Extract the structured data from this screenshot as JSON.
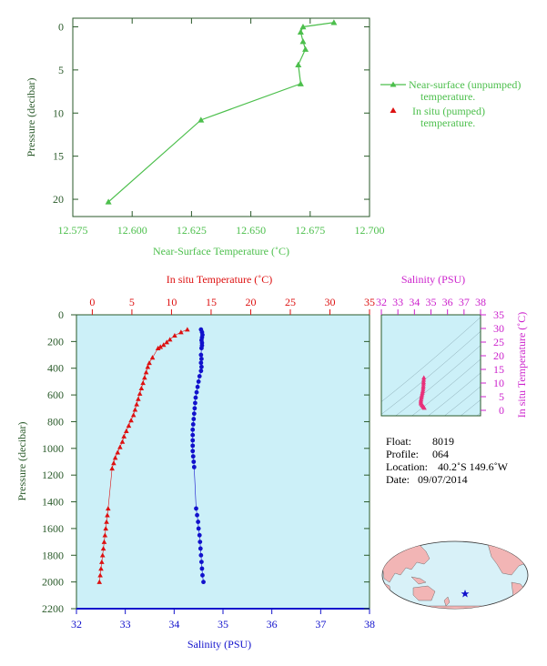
{
  "colors": {
    "near_surface": "#4cbf4c",
    "temperature": "#dd1111",
    "salinity": "#1111cc",
    "salinity_axis": "#cc22cc",
    "ts_points": "#e8307a",
    "axis_dark_green": "#2a5a2a",
    "plot_bg": "#ccf0f8",
    "land": "#f2b5b5",
    "ocean": "#d8f1f8"
  },
  "chart_data": [
    {
      "type": "line",
      "xlabel": "Near-Surface Temperature (˚C)",
      "ylabel": "Pressure (decibar)",
      "xlim": [
        12.575,
        12.7
      ],
      "ylim": [
        22,
        -1
      ],
      "x_ticks": [
        "12.575",
        "12.600",
        "12.625",
        "12.650",
        "12.675",
        "12.700"
      ],
      "y_ticks": [
        "0",
        "5",
        "10",
        "15",
        "20"
      ],
      "legend": [
        {
          "line1": "Near-surface (unpumped)",
          "line2": "temperature."
        },
        {
          "line1": "In situ (pumped)",
          "line2": "temperature."
        }
      ],
      "series": [
        {
          "points": [
            [
              12.685,
              -0.5
            ],
            [
              12.672,
              0.0
            ],
            [
              12.671,
              0.6
            ],
            [
              12.672,
              1.7
            ],
            [
              12.673,
              2.6
            ],
            [
              12.67,
              4.4
            ],
            [
              12.671,
              6.6
            ],
            [
              12.629,
              10.8
            ],
            [
              12.59,
              20.3
            ]
          ]
        }
      ]
    },
    {
      "type": "scatter",
      "top_xlabel": "In situ Temperature (˚C)",
      "bottom_xlabel": "Salinity (PSU)",
      "ylabel": "Pressure (decibar)",
      "temp_xlim": [
        -2,
        35
      ],
      "sal_xlim": [
        32,
        38
      ],
      "ylim": [
        2200,
        0
      ],
      "temp_ticks": [
        "0",
        "5",
        "10",
        "15",
        "20",
        "25",
        "30",
        "35"
      ],
      "sal_ticks": [
        "32",
        "33",
        "34",
        "35",
        "36",
        "37",
        "38"
      ],
      "y_ticks": [
        "0",
        "200",
        "400",
        "600",
        "800",
        "1000",
        "1200",
        "1400",
        "1600",
        "1800",
        "2000",
        "2200"
      ],
      "temperature": [
        [
          12.0,
          110
        ],
        [
          11.2,
          130
        ],
        [
          10.4,
          155
        ],
        [
          9.8,
          185
        ],
        [
          9.4,
          205
        ],
        [
          9.0,
          225
        ],
        [
          8.6,
          240
        ],
        [
          8.3,
          250
        ],
        [
          7.6,
          320
        ],
        [
          7.2,
          360
        ],
        [
          7.0,
          390
        ],
        [
          6.8,
          430
        ],
        [
          6.6,
          470
        ],
        [
          6.4,
          510
        ],
        [
          6.2,
          550
        ],
        [
          6.0,
          590
        ],
        [
          5.8,
          630
        ],
        [
          5.6,
          670
        ],
        [
          5.4,
          710
        ],
        [
          5.2,
          750
        ],
        [
          4.9,
          790
        ],
        [
          4.6,
          830
        ],
        [
          4.3,
          870
        ],
        [
          4.0,
          910
        ],
        [
          3.8,
          950
        ],
        [
          3.5,
          990
        ],
        [
          3.2,
          1030
        ],
        [
          2.9,
          1070
        ],
        [
          2.7,
          1110
        ],
        [
          2.5,
          1150
        ],
        [
          2.0,
          1450
        ],
        [
          1.9,
          1500
        ],
        [
          1.8,
          1550
        ],
        [
          1.7,
          1600
        ],
        [
          1.6,
          1650
        ],
        [
          1.5,
          1700
        ],
        [
          1.4,
          1750
        ],
        [
          1.3,
          1800
        ],
        [
          1.2,
          1850
        ],
        [
          1.1,
          1900
        ],
        [
          1.0,
          1950
        ],
        [
          0.9,
          2000
        ]
      ],
      "salinity": [
        [
          34.55,
          110
        ],
        [
          34.57,
          130
        ],
        [
          34.58,
          150
        ],
        [
          34.57,
          170
        ],
        [
          34.56,
          190
        ],
        [
          34.57,
          210
        ],
        [
          34.57,
          230
        ],
        [
          34.56,
          250
        ],
        [
          34.55,
          300
        ],
        [
          34.56,
          330
        ],
        [
          34.55,
          360
        ],
        [
          34.56,
          390
        ],
        [
          34.55,
          420
        ],
        [
          34.52,
          460
        ],
        [
          34.5,
          500
        ],
        [
          34.48,
          540
        ],
        [
          34.46,
          580
        ],
        [
          34.44,
          620
        ],
        [
          34.43,
          660
        ],
        [
          34.42,
          700
        ],
        [
          34.41,
          740
        ],
        [
          34.4,
          780
        ],
        [
          34.39,
          820
        ],
        [
          34.38,
          860
        ],
        [
          34.38,
          900
        ],
        [
          34.38,
          940
        ],
        [
          34.38,
          980
        ],
        [
          34.38,
          1020
        ],
        [
          34.39,
          1060
        ],
        [
          34.4,
          1100
        ],
        [
          34.41,
          1140
        ],
        [
          34.45,
          1450
        ],
        [
          34.47,
          1500
        ],
        [
          34.49,
          1550
        ],
        [
          34.5,
          1600
        ],
        [
          34.52,
          1650
        ],
        [
          34.53,
          1700
        ],
        [
          34.54,
          1750
        ],
        [
          34.55,
          1800
        ],
        [
          34.56,
          1850
        ],
        [
          34.57,
          1900
        ],
        [
          34.58,
          1950
        ],
        [
          34.6,
          2000
        ]
      ]
    },
    {
      "type": "scatter",
      "top_xlabel": "Salinity (PSU)",
      "ylabel": "In situ Temperature (˚C)",
      "xlim": [
        32,
        38
      ],
      "ylim": [
        -2,
        35
      ],
      "x_ticks": [
        "32",
        "33",
        "34",
        "35",
        "36",
        "37",
        "38"
      ],
      "y_ticks": [
        "0",
        "5",
        "10",
        "15",
        "20",
        "25",
        "30",
        "35"
      ],
      "points": [
        [
          34.57,
          12.0
        ],
        [
          34.56,
          11.2
        ],
        [
          34.55,
          10.4
        ],
        [
          34.55,
          9.8
        ],
        [
          34.54,
          9.0
        ],
        [
          34.53,
          8.3
        ],
        [
          34.52,
          7.6
        ],
        [
          34.5,
          7.0
        ],
        [
          34.48,
          6.4
        ],
        [
          34.46,
          5.8
        ],
        [
          34.44,
          5.2
        ],
        [
          34.42,
          4.6
        ],
        [
          34.4,
          4.0
        ],
        [
          34.39,
          3.5
        ],
        [
          34.39,
          2.9
        ],
        [
          34.4,
          2.5
        ],
        [
          34.45,
          2.0
        ],
        [
          34.5,
          1.7
        ],
        [
          34.54,
          1.4
        ],
        [
          34.57,
          1.1
        ],
        [
          34.6,
          0.9
        ]
      ]
    }
  ],
  "info": {
    "float_label": "Float:",
    "float_value": "8019",
    "profile_label": "Profile:",
    "profile_value": "064",
    "location_label": "Location:",
    "location_value": "40.2˚S  149.6˚W",
    "date_label": "Date:",
    "date_value": "09/07/2014"
  },
  "map": {
    "marker_icon": "star-icon"
  }
}
